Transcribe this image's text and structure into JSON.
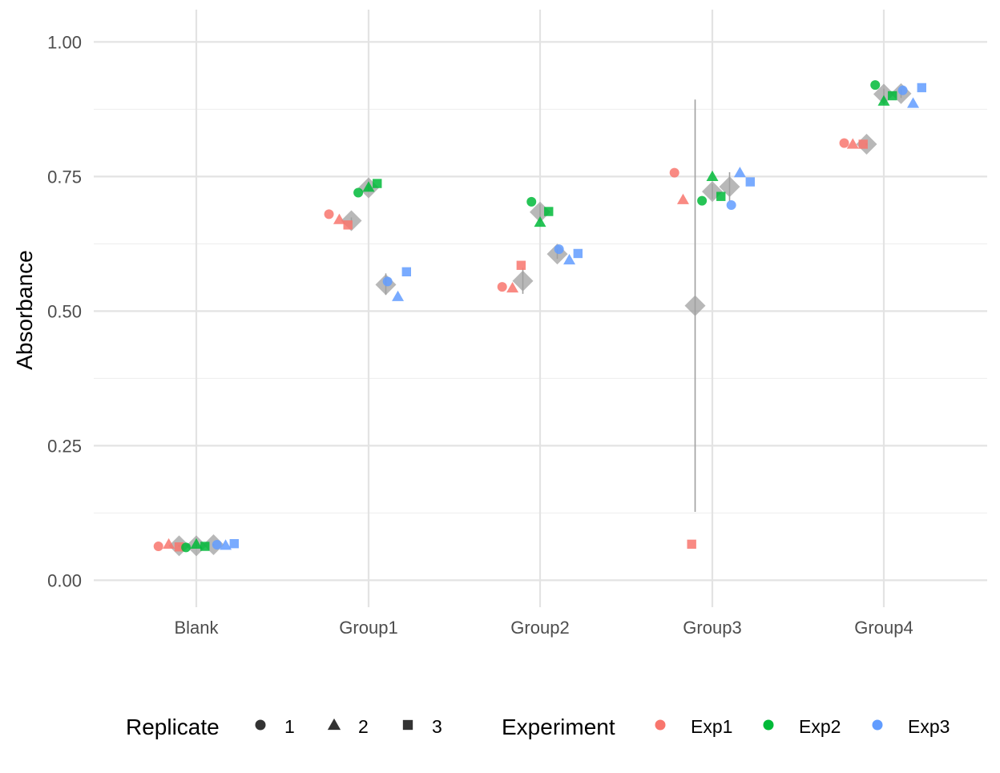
{
  "chart_data": {
    "type": "scatter",
    "title": "",
    "xlabel": "",
    "ylabel": "Absorbance",
    "categories": [
      "Blank",
      "Group1",
      "Group2",
      "Group3",
      "Group4"
    ],
    "ylim": [
      -0.05,
      1.06
    ],
    "yticks": [
      "0.00",
      "0.25",
      "0.50",
      "0.75",
      "1.00"
    ],
    "ytick_values": [
      0,
      0.25,
      0.5,
      0.75,
      1.0
    ],
    "grid": true,
    "legend_position": "bottom",
    "replicate_legend": {
      "title": "Replicate",
      "items": [
        {
          "label": "1",
          "shape": "circle"
        },
        {
          "label": "2",
          "shape": "triangle"
        },
        {
          "label": "3",
          "shape": "square"
        }
      ]
    },
    "experiment_legend": {
      "title": "Experiment",
      "items": [
        {
          "label": "Exp1",
          "color": "#F8766D"
        },
        {
          "label": "Exp2",
          "color": "#00BA38"
        },
        {
          "label": "Exp3",
          "color": "#619CFF"
        }
      ]
    },
    "mean_color": "#a0a0a0",
    "points": [
      {
        "group": "Blank",
        "experiment": "Exp1",
        "replicate": "1",
        "x_offset": -0.22,
        "y": 0.063
      },
      {
        "group": "Blank",
        "experiment": "Exp1",
        "replicate": "2",
        "x_offset": -0.16,
        "y": 0.067
      },
      {
        "group": "Blank",
        "experiment": "Exp1",
        "replicate": "3",
        "x_offset": -0.1,
        "y": 0.062
      },
      {
        "group": "Blank",
        "experiment": "Exp2",
        "replicate": "1",
        "x_offset": -0.06,
        "y": 0.061
      },
      {
        "group": "Blank",
        "experiment": "Exp2",
        "replicate": "2",
        "x_offset": 0.0,
        "y": 0.067
      },
      {
        "group": "Blank",
        "experiment": "Exp2",
        "replicate": "3",
        "x_offset": 0.05,
        "y": 0.063
      },
      {
        "group": "Blank",
        "experiment": "Exp3",
        "replicate": "1",
        "x_offset": 0.12,
        "y": 0.066
      },
      {
        "group": "Blank",
        "experiment": "Exp3",
        "replicate": "2",
        "x_offset": 0.17,
        "y": 0.065
      },
      {
        "group": "Blank",
        "experiment": "Exp3",
        "replicate": "3",
        "x_offset": 0.22,
        "y": 0.068
      },
      {
        "group": "Group1",
        "experiment": "Exp1",
        "replicate": "1",
        "x_offset": -0.23,
        "y": 0.68
      },
      {
        "group": "Group1",
        "experiment": "Exp1",
        "replicate": "2",
        "x_offset": -0.17,
        "y": 0.67
      },
      {
        "group": "Group1",
        "experiment": "Exp1",
        "replicate": "3",
        "x_offset": -0.12,
        "y": 0.66
      },
      {
        "group": "Group1",
        "experiment": "Exp2",
        "replicate": "1",
        "x_offset": -0.06,
        "y": 0.72
      },
      {
        "group": "Group1",
        "experiment": "Exp2",
        "replicate": "2",
        "x_offset": 0.0,
        "y": 0.73
      },
      {
        "group": "Group1",
        "experiment": "Exp2",
        "replicate": "3",
        "x_offset": 0.05,
        "y": 0.737
      },
      {
        "group": "Group1",
        "experiment": "Exp3",
        "replicate": "1",
        "x_offset": 0.11,
        "y": 0.555
      },
      {
        "group": "Group1",
        "experiment": "Exp3",
        "replicate": "2",
        "x_offset": 0.17,
        "y": 0.527
      },
      {
        "group": "Group1",
        "experiment": "Exp3",
        "replicate": "3",
        "x_offset": 0.22,
        "y": 0.573
      },
      {
        "group": "Group2",
        "experiment": "Exp1",
        "replicate": "1",
        "x_offset": -0.22,
        "y": 0.545
      },
      {
        "group": "Group2",
        "experiment": "Exp1",
        "replicate": "2",
        "x_offset": -0.16,
        "y": 0.543
      },
      {
        "group": "Group2",
        "experiment": "Exp1",
        "replicate": "3",
        "x_offset": -0.11,
        "y": 0.585
      },
      {
        "group": "Group2",
        "experiment": "Exp2",
        "replicate": "1",
        "x_offset": -0.05,
        "y": 0.703
      },
      {
        "group": "Group2",
        "experiment": "Exp2",
        "replicate": "2",
        "x_offset": 0.0,
        "y": 0.665
      },
      {
        "group": "Group2",
        "experiment": "Exp2",
        "replicate": "3",
        "x_offset": 0.05,
        "y": 0.685
      },
      {
        "group": "Group2",
        "experiment": "Exp3",
        "replicate": "1",
        "x_offset": 0.11,
        "y": 0.615
      },
      {
        "group": "Group2",
        "experiment": "Exp3",
        "replicate": "2",
        "x_offset": 0.17,
        "y": 0.595
      },
      {
        "group": "Group2",
        "experiment": "Exp3",
        "replicate": "3",
        "x_offset": 0.22,
        "y": 0.607
      },
      {
        "group": "Group3",
        "experiment": "Exp1",
        "replicate": "1",
        "x_offset": -0.22,
        "y": 0.757
      },
      {
        "group": "Group3",
        "experiment": "Exp1",
        "replicate": "2",
        "x_offset": -0.17,
        "y": 0.707
      },
      {
        "group": "Group3",
        "experiment": "Exp1",
        "replicate": "3",
        "x_offset": -0.12,
        "y": 0.067
      },
      {
        "group": "Group3",
        "experiment": "Exp2",
        "replicate": "1",
        "x_offset": -0.06,
        "y": 0.705
      },
      {
        "group": "Group3",
        "experiment": "Exp2",
        "replicate": "2",
        "x_offset": 0.0,
        "y": 0.75
      },
      {
        "group": "Group3",
        "experiment": "Exp2",
        "replicate": "3",
        "x_offset": 0.05,
        "y": 0.713
      },
      {
        "group": "Group3",
        "experiment": "Exp3",
        "replicate": "1",
        "x_offset": 0.11,
        "y": 0.697
      },
      {
        "group": "Group3",
        "experiment": "Exp3",
        "replicate": "2",
        "x_offset": 0.16,
        "y": 0.757
      },
      {
        "group": "Group3",
        "experiment": "Exp3",
        "replicate": "3",
        "x_offset": 0.22,
        "y": 0.74
      },
      {
        "group": "Group4",
        "experiment": "Exp1",
        "replicate": "1",
        "x_offset": -0.23,
        "y": 0.812
      },
      {
        "group": "Group4",
        "experiment": "Exp1",
        "replicate": "2",
        "x_offset": -0.18,
        "y": 0.81
      },
      {
        "group": "Group4",
        "experiment": "Exp1",
        "replicate": "3",
        "x_offset": -0.12,
        "y": 0.81
      },
      {
        "group": "Group4",
        "experiment": "Exp2",
        "replicate": "1",
        "x_offset": -0.05,
        "y": 0.92
      },
      {
        "group": "Group4",
        "experiment": "Exp2",
        "replicate": "2",
        "x_offset": 0.0,
        "y": 0.89
      },
      {
        "group": "Group4",
        "experiment": "Exp2",
        "replicate": "3",
        "x_offset": 0.05,
        "y": 0.9
      },
      {
        "group": "Group4",
        "experiment": "Exp3",
        "replicate": "1",
        "x_offset": 0.11,
        "y": 0.91
      },
      {
        "group": "Group4",
        "experiment": "Exp3",
        "replicate": "2",
        "x_offset": 0.17,
        "y": 0.886
      },
      {
        "group": "Group4",
        "experiment": "Exp3",
        "replicate": "3",
        "x_offset": 0.22,
        "y": 0.915
      }
    ],
    "means": [
      {
        "group": "Blank",
        "experiment": "Exp1",
        "x_offset": -0.1,
        "y": 0.064,
        "se_low": 0.062,
        "se_high": 0.066
      },
      {
        "group": "Blank",
        "experiment": "Exp2",
        "x_offset": 0.0,
        "y": 0.064,
        "se_low": 0.062,
        "se_high": 0.066
      },
      {
        "group": "Blank",
        "experiment": "Exp3",
        "x_offset": 0.1,
        "y": 0.066,
        "se_low": 0.065,
        "se_high": 0.067
      },
      {
        "group": "Group1",
        "experiment": "Exp1",
        "x_offset": -0.1,
        "y": 0.668,
        "se_low": 0.662,
        "se_high": 0.674
      },
      {
        "group": "Group1",
        "experiment": "Exp2",
        "x_offset": 0.0,
        "y": 0.729,
        "se_low": 0.723,
        "se_high": 0.735
      },
      {
        "group": "Group1",
        "experiment": "Exp3",
        "x_offset": 0.1,
        "y": 0.549,
        "se_low": 0.53,
        "se_high": 0.57
      },
      {
        "group": "Group2",
        "experiment": "Exp1",
        "x_offset": -0.1,
        "y": 0.556,
        "se_low": 0.532,
        "se_high": 0.58
      },
      {
        "group": "Group2",
        "experiment": "Exp2",
        "x_offset": 0.0,
        "y": 0.684,
        "se_low": 0.67,
        "se_high": 0.698
      },
      {
        "group": "Group2",
        "experiment": "Exp3",
        "x_offset": 0.1,
        "y": 0.606,
        "se_low": 0.597,
        "se_high": 0.615
      },
      {
        "group": "Group3",
        "experiment": "Exp1",
        "x_offset": -0.1,
        "y": 0.51,
        "se_low": 0.127,
        "se_high": 0.893
      },
      {
        "group": "Group3",
        "experiment": "Exp2",
        "x_offset": 0.0,
        "y": 0.722,
        "se_low": 0.708,
        "se_high": 0.736
      },
      {
        "group": "Group3",
        "experiment": "Exp3",
        "x_offset": 0.1,
        "y": 0.731,
        "se_low": 0.704,
        "se_high": 0.758
      },
      {
        "group": "Group4",
        "experiment": "Exp1",
        "x_offset": -0.1,
        "y": 0.81,
        "se_low": 0.808,
        "se_high": 0.812
      },
      {
        "group": "Group4",
        "experiment": "Exp2",
        "x_offset": 0.0,
        "y": 0.903,
        "se_low": 0.893,
        "se_high": 0.913
      },
      {
        "group": "Group4",
        "experiment": "Exp3",
        "x_offset": 0.1,
        "y": 0.904,
        "se_low": 0.896,
        "se_high": 0.912
      }
    ]
  }
}
